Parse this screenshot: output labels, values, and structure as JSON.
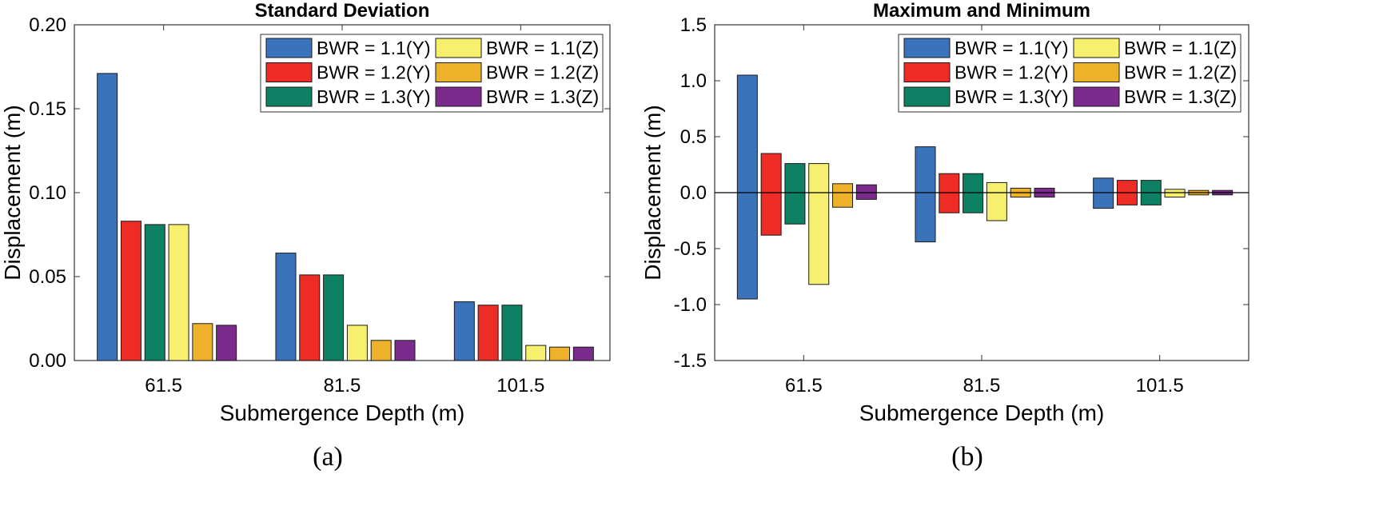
{
  "chart_data": [
    {
      "type": "bar",
      "title": "Standard Deviation",
      "xlabel": "Submergence Depth (m)",
      "ylabel": "Displacement (m)",
      "caption": "(a)",
      "ylim": [
        0,
        0.2
      ],
      "yticks": [
        "0.00",
        "0.05",
        "0.10",
        "0.15",
        "0.20"
      ],
      "categories": [
        "61.5",
        "81.5",
        "101.5"
      ],
      "legend_position": "top-right",
      "series": [
        {
          "name": "BWR = 1.1(Y)",
          "color": "#3B73BB",
          "values": [
            0.171,
            0.064,
            0.035
          ]
        },
        {
          "name": "BWR = 1.2(Y)",
          "color": "#EE2C26",
          "values": [
            0.083,
            0.051,
            0.033
          ]
        },
        {
          "name": "BWR = 1.3(Y)",
          "color": "#0E8063",
          "values": [
            0.081,
            0.051,
            0.033
          ]
        },
        {
          "name": "BWR = 1.1(Z)",
          "color": "#F7F06E",
          "values": [
            0.081,
            0.021,
            0.009
          ]
        },
        {
          "name": "BWR = 1.2(Z)",
          "color": "#EDB12A",
          "values": [
            0.022,
            0.012,
            0.008
          ]
        },
        {
          "name": "BWR = 1.3(Z)",
          "color": "#7A2B8C",
          "values": [
            0.021,
            0.012,
            0.008
          ]
        }
      ]
    },
    {
      "type": "bar",
      "title": "Maximum and Minimum",
      "xlabel": "Submergence Depth (m)",
      "ylabel": "Displacement (m)",
      "caption": "(b)",
      "ylim": [
        -1.5,
        1.5
      ],
      "yticks": [
        "-1.5",
        "-1.0",
        "-0.5",
        "0.0",
        "0.5",
        "1.0",
        "1.5"
      ],
      "categories": [
        "61.5",
        "81.5",
        "101.5"
      ],
      "legend_position": "top-right",
      "series": [
        {
          "name": "BWR = 1.1(Y)",
          "color": "#3B73BB",
          "max": [
            1.05,
            0.41,
            0.13
          ],
          "min": [
            -0.95,
            -0.44,
            -0.14
          ]
        },
        {
          "name": "BWR = 1.2(Y)",
          "color": "#EE2C26",
          "max": [
            0.35,
            0.17,
            0.11
          ],
          "min": [
            -0.38,
            -0.18,
            -0.11
          ]
        },
        {
          "name": "BWR = 1.3(Y)",
          "color": "#0E8063",
          "max": [
            0.26,
            0.17,
            0.11
          ],
          "min": [
            -0.28,
            -0.18,
            -0.11
          ]
        },
        {
          "name": "BWR = 1.1(Z)",
          "color": "#F7F06E",
          "max": [
            0.26,
            0.09,
            0.03
          ],
          "min": [
            -0.82,
            -0.25,
            -0.04
          ]
        },
        {
          "name": "BWR = 1.2(Z)",
          "color": "#EDB12A",
          "max": [
            0.08,
            0.04,
            0.02
          ],
          "min": [
            -0.13,
            -0.04,
            -0.02
          ]
        },
        {
          "name": "BWR = 1.3(Z)",
          "color": "#7A2B8C",
          "max": [
            0.07,
            0.04,
            0.02
          ],
          "min": [
            -0.06,
            -0.04,
            -0.02
          ]
        }
      ]
    }
  ]
}
